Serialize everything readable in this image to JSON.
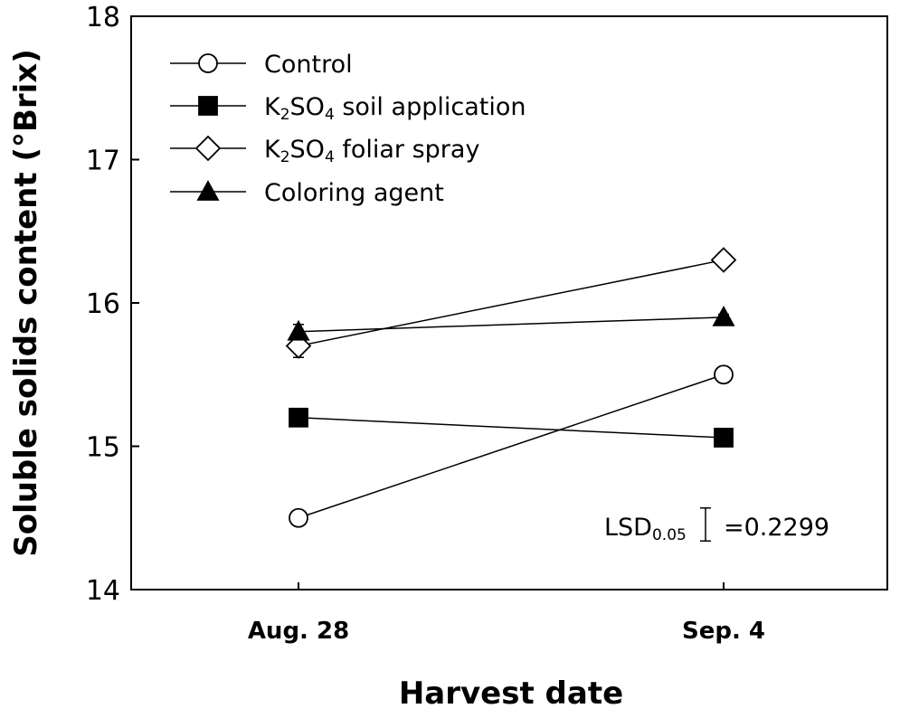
{
  "chart_data": {
    "type": "line",
    "title": "",
    "xlabel": "Harvest date",
    "ylabel": "Soluble solids content (°Brix)",
    "categories": [
      "Aug. 28",
      "Sep. 4"
    ],
    "ylim": [
      14,
      18
    ],
    "yticks": [
      14,
      15,
      16,
      17,
      18
    ],
    "grid": false,
    "legend_position": "top-left",
    "series": [
      {
        "name": "Control",
        "legend_main": "Control",
        "legend_sub": "",
        "legend_rest": "",
        "marker": "circle-open",
        "values": [
          14.5,
          15.5
        ],
        "errors": [
          0.03,
          0.03
        ]
      },
      {
        "name": "K2SO4 soil application",
        "legend_main": "K",
        "legend_sub": "2",
        "legend_mid": "SO",
        "legend_sub2": "4",
        "legend_rest": " soil application",
        "marker": "square-filled",
        "values": [
          15.2,
          15.06
        ],
        "errors": [
          0.02,
          0.02
        ]
      },
      {
        "name": "K2SO4 foliar spray",
        "legend_main": "K",
        "legend_sub": "2",
        "legend_mid": "SO",
        "legend_sub2": "4",
        "legend_rest": " foliar spray",
        "marker": "diamond-open",
        "values": [
          15.7,
          16.3
        ],
        "errors": [
          0.08,
          0.03
        ]
      },
      {
        "name": "Coloring agent",
        "legend_main": "Coloring agent",
        "legend_sub": "",
        "legend_rest": "",
        "marker": "triangle-filled",
        "values": [
          15.8,
          15.9
        ],
        "errors": [
          0.05,
          0.02
        ]
      }
    ],
    "annotation": {
      "label_main": "LSD",
      "label_sub": "0.05",
      "value_text": "=0.2299",
      "lsd_value": 0.2299
    }
  }
}
